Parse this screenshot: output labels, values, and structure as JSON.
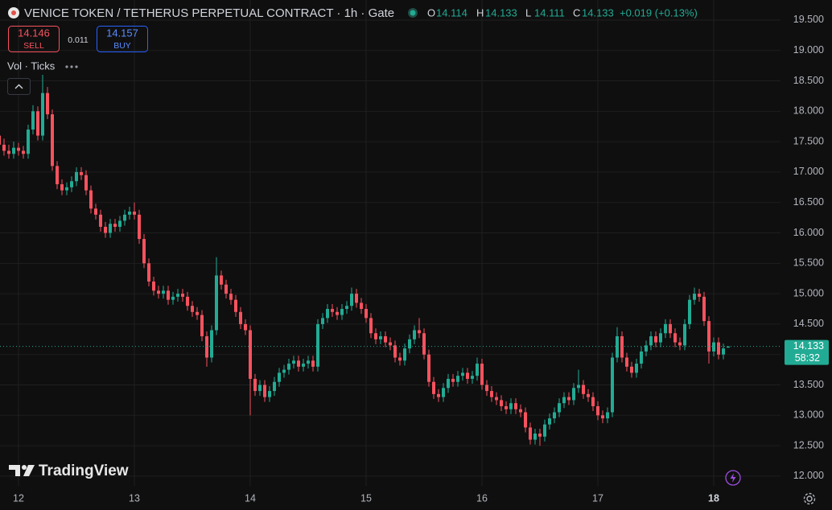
{
  "chart_data": {
    "type": "candlestick",
    "title": "VENICE TOKEN / TETHERUS PERPETUAL CONTRACT · 1h · Gate",
    "ohlc_letters": [
      "O",
      "H",
      "L",
      "C"
    ],
    "change": "+0.019 (+0.13%)",
    "sell": {
      "price": "14.146",
      "label": "SELL"
    },
    "spread": "0.011",
    "buy": {
      "price": "14.157",
      "label": "BUY"
    },
    "indicator": "Vol · Ticks",
    "logo_text": "TradingView",
    "countdown": "58:32",
    "up_color": "#22ab94",
    "down_color": "#f7525f",
    "grid": true,
    "ylim": [
      11.84,
      19.83
    ],
    "yticks": [
      {
        "value": 12,
        "label": "12.000"
      },
      {
        "value": 12.5,
        "label": "12.500"
      },
      {
        "value": 13,
        "label": "13.000"
      },
      {
        "value": 13.5,
        "label": "13.500"
      },
      {
        "value": 14,
        "label": "14.000"
      },
      {
        "value": 14.5,
        "label": "14.500"
      },
      {
        "value": 15,
        "label": "15.000"
      },
      {
        "value": 15.5,
        "label": "15.500"
      },
      {
        "value": 16,
        "label": "16.000"
      },
      {
        "value": 16.5,
        "label": "16.500"
      },
      {
        "value": 17,
        "label": "17.000"
      },
      {
        "value": 17.5,
        "label": "17.500"
      },
      {
        "value": 18,
        "label": "18.000"
      },
      {
        "value": 18.5,
        "label": "18.500"
      },
      {
        "value": 19,
        "label": "19.000"
      },
      {
        "value": 19.5,
        "label": "19.500"
      }
    ],
    "categories": [
      null,
      null,
      null,
      null,
      "12",
      null,
      null,
      null,
      null,
      null,
      null,
      null,
      null,
      null,
      null,
      null,
      null,
      null,
      null,
      null,
      null,
      null,
      null,
      null,
      null,
      null,
      null,
      null,
      "13",
      null,
      null,
      null,
      null,
      null,
      null,
      null,
      null,
      null,
      null,
      null,
      null,
      null,
      null,
      null,
      null,
      null,
      null,
      null,
      null,
      null,
      null,
      null,
      "14",
      null,
      null,
      null,
      null,
      null,
      null,
      null,
      null,
      null,
      null,
      null,
      null,
      null,
      null,
      null,
      null,
      null,
      null,
      null,
      null,
      null,
      null,
      null,
      "15",
      null,
      null,
      null,
      null,
      null,
      null,
      null,
      null,
      null,
      null,
      null,
      null,
      null,
      null,
      null,
      null,
      null,
      null,
      null,
      null,
      null,
      null,
      null,
      "16",
      null,
      null,
      null,
      null,
      null,
      null,
      null,
      null,
      null,
      null,
      null,
      null,
      null,
      null,
      null,
      null,
      null,
      null,
      null,
      null,
      null,
      null,
      null,
      "17",
      null,
      null,
      null,
      null,
      null,
      null,
      null,
      null,
      null,
      null,
      null,
      null,
      null,
      null,
      null,
      null,
      null,
      null,
      null,
      null,
      null,
      null,
      null,
      "18",
      null,
      null,
      null
    ],
    "open": [
      17.6,
      17.45,
      17.35,
      17.3,
      17.4,
      17.35,
      17.3,
      17.7,
      18.0,
      17.6,
      18.3,
      17.95,
      17.1,
      16.8,
      16.7,
      16.75,
      16.85,
      17.0,
      16.95,
      16.7,
      16.4,
      16.3,
      16.1,
      16.0,
      16.15,
      16.1,
      16.2,
      16.3,
      16.35,
      16.3,
      15.9,
      15.5,
      15.2,
      15.05,
      15.0,
      15.05,
      14.9,
      14.95,
      15.0,
      14.95,
      14.8,
      14.7,
      14.65,
      14.3,
      13.95,
      14.4,
      15.3,
      15.15,
      15.0,
      14.9,
      14.7,
      14.5,
      14.4,
      13.6,
      13.4,
      13.5,
      13.3,
      13.4,
      13.55,
      13.7,
      13.75,
      13.85,
      13.9,
      13.8,
      13.85,
      13.9,
      13.8,
      14.5,
      14.6,
      14.75,
      14.7,
      14.65,
      14.75,
      14.8,
      15.0,
      14.85,
      14.75,
      14.6,
      14.35,
      14.25,
      14.3,
      14.2,
      14.15,
      13.95,
      13.9,
      14.1,
      14.25,
      14.4,
      14.35,
      14.0,
      13.55,
      13.35,
      13.3,
      13.45,
      13.6,
      13.55,
      13.65,
      13.7,
      13.6,
      13.65,
      13.85,
      13.5,
      13.4,
      13.3,
      13.25,
      13.15,
      13.1,
      13.2,
      13.1,
      13.05,
      12.8,
      12.6,
      12.7,
      12.65,
      12.85,
      12.95,
      13.05,
      13.2,
      13.3,
      13.25,
      13.45,
      13.5,
      13.35,
      13.3,
      13.15,
      13.0,
      12.95,
      13.05,
      13.95,
      14.3,
      13.95,
      13.8,
      13.7,
      13.85,
      14.05,
      14.15,
      14.3,
      14.2,
      14.35,
      14.5,
      14.35,
      14.2,
      14.15,
      14.5,
      14.9,
      15.0,
      14.95,
      14.55,
      14.05,
      14.2,
      14.0,
      14.114
    ],
    "high": [
      18.1,
      17.55,
      17.45,
      17.5,
      17.48,
      17.43,
      17.78,
      18.1,
      18.08,
      18.6,
      18.4,
      18.03,
      17.18,
      16.88,
      16.83,
      16.93,
      17.08,
      17.08,
      17.03,
      16.78,
      16.48,
      16.38,
      16.18,
      16.23,
      16.23,
      16.28,
      16.38,
      16.43,
      16.5,
      16.38,
      15.98,
      15.58,
      15.28,
      15.13,
      15.13,
      15.13,
      15.03,
      15.08,
      15.08,
      15.03,
      14.88,
      14.78,
      14.73,
      14.38,
      14.48,
      15.6,
      15.38,
      15.23,
      15.08,
      14.98,
      14.78,
      14.58,
      14.48,
      13.68,
      13.58,
      13.58,
      13.48,
      13.63,
      13.78,
      13.83,
      13.93,
      13.98,
      13.98,
      13.93,
      13.98,
      13.98,
      14.58,
      14.68,
      14.83,
      14.83,
      14.78,
      14.83,
      14.88,
      15.1,
      15.08,
      14.93,
      14.83,
      14.68,
      14.43,
      14.38,
      14.38,
      14.28,
      14.23,
      14.03,
      14.18,
      14.33,
      14.48,
      14.6,
      14.43,
      14.08,
      13.63,
      13.43,
      13.53,
      13.68,
      13.68,
      13.73,
      13.78,
      13.78,
      13.73,
      13.95,
      13.93,
      13.58,
      13.48,
      13.38,
      13.33,
      13.23,
      13.28,
      13.28,
      13.18,
      13.13,
      12.88,
      12.78,
      12.78,
      12.93,
      13.03,
      13.13,
      13.28,
      13.38,
      13.38,
      13.53,
      13.75,
      13.58,
      13.43,
      13.38,
      13.23,
      13.08,
      13.13,
      14.03,
      14.45,
      14.38,
      14.03,
      13.88,
      13.93,
      14.13,
      14.23,
      14.38,
      14.38,
      14.43,
      14.58,
      14.58,
      14.43,
      14.28,
      14.58,
      14.98,
      15.1,
      15.08,
      15.03,
      14.63,
      14.28,
      14.28,
      14.18,
      14.133
    ],
    "low": [
      17.3,
      17.27,
      17.22,
      17.22,
      17.27,
      17.22,
      17.22,
      17.62,
      17.52,
      17.52,
      17.87,
      17.02,
      16.72,
      16.62,
      16.62,
      16.67,
      16.77,
      16.87,
      16.62,
      16.32,
      16.22,
      16.02,
      15.92,
      15.92,
      16.02,
      16.02,
      16.12,
      16.22,
      16.22,
      15.82,
      15.42,
      15.12,
      14.97,
      14.92,
      14.92,
      14.82,
      14.82,
      14.87,
      14.87,
      14.72,
      14.62,
      14.57,
      14.22,
      13.8,
      13.87,
      14.32,
      15.07,
      14.92,
      14.82,
      14.62,
      14.42,
      14.32,
      13.0,
      13.32,
      13.32,
      13.22,
      13.22,
      13.32,
      13.47,
      13.62,
      13.67,
      13.77,
      13.72,
      13.72,
      13.77,
      13.72,
      13.72,
      14.42,
      14.52,
      14.62,
      14.57,
      14.57,
      14.67,
      14.72,
      14.77,
      14.67,
      14.52,
      14.27,
      14.17,
      14.17,
      14.12,
      14.07,
      13.87,
      13.82,
      13.82,
      14.02,
      14.17,
      14.27,
      13.92,
      13.47,
      13.27,
      13.22,
      13.22,
      13.37,
      13.47,
      13.47,
      13.57,
      13.52,
      13.52,
      13.57,
      13.42,
      13.32,
      13.22,
      13.17,
      13.07,
      13.02,
      13.02,
      13.02,
      12.97,
      12.72,
      12.52,
      12.52,
      12.5,
      12.57,
      12.77,
      12.87,
      12.97,
      13.12,
      13.17,
      13.17,
      13.37,
      13.27,
      13.22,
      13.07,
      12.92,
      12.87,
      12.87,
      12.97,
      13.87,
      13.87,
      13.72,
      13.62,
      13.62,
      13.77,
      13.97,
      14.07,
      14.12,
      14.12,
      14.27,
      14.27,
      14.12,
      14.07,
      14.07,
      14.42,
      14.82,
      14.87,
      14.47,
      13.85,
      13.97,
      13.92,
      13.92,
      14.111
    ],
    "close": [
      17.45,
      17.35,
      17.3,
      17.4,
      17.35,
      17.3,
      17.7,
      18.0,
      17.6,
      18.3,
      17.95,
      17.1,
      16.8,
      16.7,
      16.75,
      16.85,
      17.0,
      16.95,
      16.7,
      16.4,
      16.3,
      16.1,
      16.0,
      16.15,
      16.1,
      16.2,
      16.3,
      16.35,
      16.3,
      15.9,
      15.5,
      15.2,
      15.05,
      15.0,
      15.05,
      14.9,
      14.95,
      15.0,
      14.95,
      14.8,
      14.7,
      14.65,
      14.3,
      13.95,
      14.4,
      15.3,
      15.15,
      15.0,
      14.9,
      14.7,
      14.5,
      14.4,
      13.6,
      13.4,
      13.5,
      13.3,
      13.4,
      13.55,
      13.7,
      13.75,
      13.85,
      13.9,
      13.8,
      13.85,
      13.9,
      13.8,
      14.5,
      14.6,
      14.75,
      14.7,
      14.65,
      14.75,
      14.8,
      15.0,
      14.85,
      14.75,
      14.6,
      14.35,
      14.25,
      14.3,
      14.2,
      14.15,
      13.95,
      13.9,
      14.1,
      14.25,
      14.4,
      14.35,
      14.0,
      13.55,
      13.35,
      13.3,
      13.45,
      13.6,
      13.55,
      13.65,
      13.7,
      13.6,
      13.65,
      13.85,
      13.5,
      13.4,
      13.3,
      13.25,
      13.15,
      13.1,
      13.2,
      13.1,
      13.05,
      12.8,
      12.6,
      12.7,
      12.65,
      12.85,
      12.95,
      13.05,
      13.2,
      13.3,
      13.25,
      13.45,
      13.5,
      13.35,
      13.3,
      13.15,
      13.0,
      12.95,
      13.05,
      13.95,
      14.3,
      13.95,
      13.8,
      13.7,
      13.85,
      14.05,
      14.15,
      14.3,
      14.2,
      14.35,
      14.5,
      14.35,
      14.2,
      14.15,
      14.5,
      14.9,
      15.0,
      14.95,
      14.55,
      14.05,
      14.2,
      14.0,
      14.1,
      14.133
    ]
  }
}
